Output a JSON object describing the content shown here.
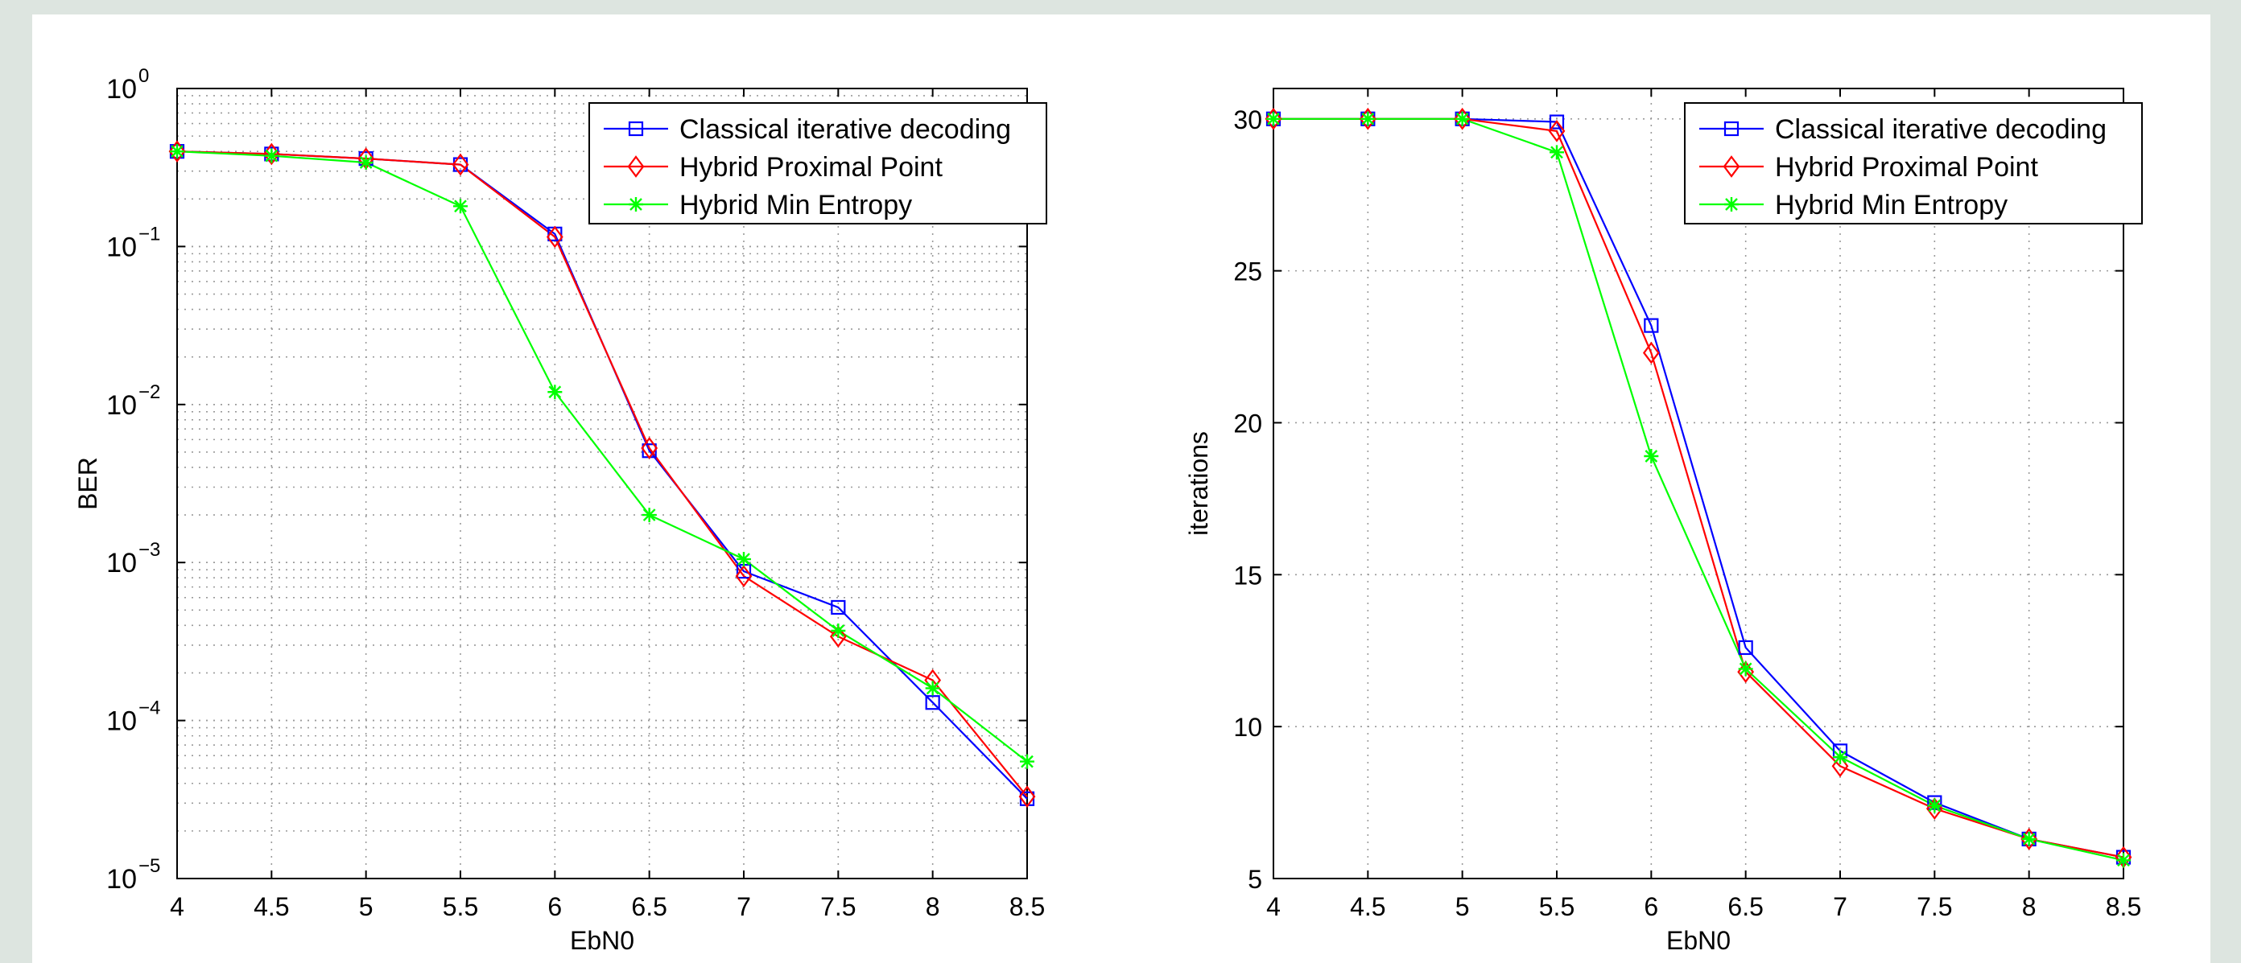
{
  "chart_data": [
    {
      "type": "line",
      "title": "",
      "xlabel": "EbN0",
      "ylabel": "BER",
      "yscale": "log",
      "xlim": [
        4,
        8.5
      ],
      "ylim": [
        1e-05,
        1
      ],
      "grid": true,
      "legend_position": "top-right",
      "x": [
        4,
        4.5,
        5,
        5.5,
        6,
        6.5,
        7,
        7.5,
        8,
        8.5
      ],
      "x_ticks": [
        "4",
        "4.5",
        "5",
        "5.5",
        "6",
        "6.5",
        "7",
        "7.5",
        "8",
        "8.5"
      ],
      "y_ticks": [
        {
          "value": 1e-05,
          "base": "10",
          "exp": "−5"
        },
        {
          "value": 0.0001,
          "base": "10",
          "exp": "−4"
        },
        {
          "value": 0.001,
          "base": "10",
          "exp": "−3"
        },
        {
          "value": 0.01,
          "base": "10",
          "exp": "−2"
        },
        {
          "value": 0.1,
          "base": "10",
          "exp": "−1"
        },
        {
          "value": 1,
          "base": "10",
          "exp": "0"
        }
      ],
      "series": [
        {
          "name": "Classical iterative decoding",
          "color": "#0000ff",
          "marker": "square",
          "values": [
            0.4,
            0.385,
            0.36,
            0.33,
            0.12,
            0.0051,
            0.00088,
            0.00052,
            0.00013,
            3.2e-05
          ]
        },
        {
          "name": "Hybrid Proximal Point",
          "color": "#ff0000",
          "marker": "diamond",
          "values": [
            0.4,
            0.385,
            0.36,
            0.33,
            0.115,
            0.0053,
            0.00082,
            0.00034,
            0.00018,
            3.3e-05
          ]
        },
        {
          "name": "Hybrid Min Entropy",
          "color": "#00ff00",
          "marker": "star",
          "values": [
            0.4,
            0.375,
            0.34,
            0.18,
            0.012,
            0.002,
            0.00105,
            0.00037,
            0.00016,
            5.5e-05
          ]
        }
      ]
    },
    {
      "type": "line",
      "title": "",
      "xlabel": "EbN0",
      "ylabel": "iterations",
      "yscale": "linear",
      "xlim": [
        4,
        8.5
      ],
      "ylim": [
        5,
        31
      ],
      "grid": true,
      "legend_position": "top-right",
      "x": [
        4,
        4.5,
        5,
        5.5,
        6,
        6.5,
        7,
        7.5,
        8,
        8.5
      ],
      "x_ticks": [
        "4",
        "4.5",
        "5",
        "5.5",
        "6",
        "6.5",
        "7",
        "7.5",
        "8",
        "8.5"
      ],
      "y_ticks": [
        {
          "value": 5,
          "label": "5"
        },
        {
          "value": 10,
          "label": "10"
        },
        {
          "value": 15,
          "label": "15"
        },
        {
          "value": 20,
          "label": "20"
        },
        {
          "value": 25,
          "label": "25"
        },
        {
          "value": 30,
          "label": "30"
        }
      ],
      "series": [
        {
          "name": "Classical iterative decoding",
          "color": "#0000ff",
          "marker": "square",
          "values": [
            30,
            30,
            30,
            29.9,
            23.2,
            12.6,
            9.2,
            7.5,
            6.3,
            5.7
          ]
        },
        {
          "name": "Hybrid Proximal Point",
          "color": "#ff0000",
          "marker": "diamond",
          "values": [
            30,
            30,
            30,
            29.6,
            22.3,
            11.8,
            8.7,
            7.3,
            6.3,
            5.7
          ]
        },
        {
          "name": "Hybrid Min Entropy",
          "color": "#00ff00",
          "marker": "star",
          "values": [
            30,
            30,
            30,
            28.9,
            18.9,
            11.9,
            9.0,
            7.4,
            6.3,
            5.6
          ]
        }
      ]
    }
  ]
}
